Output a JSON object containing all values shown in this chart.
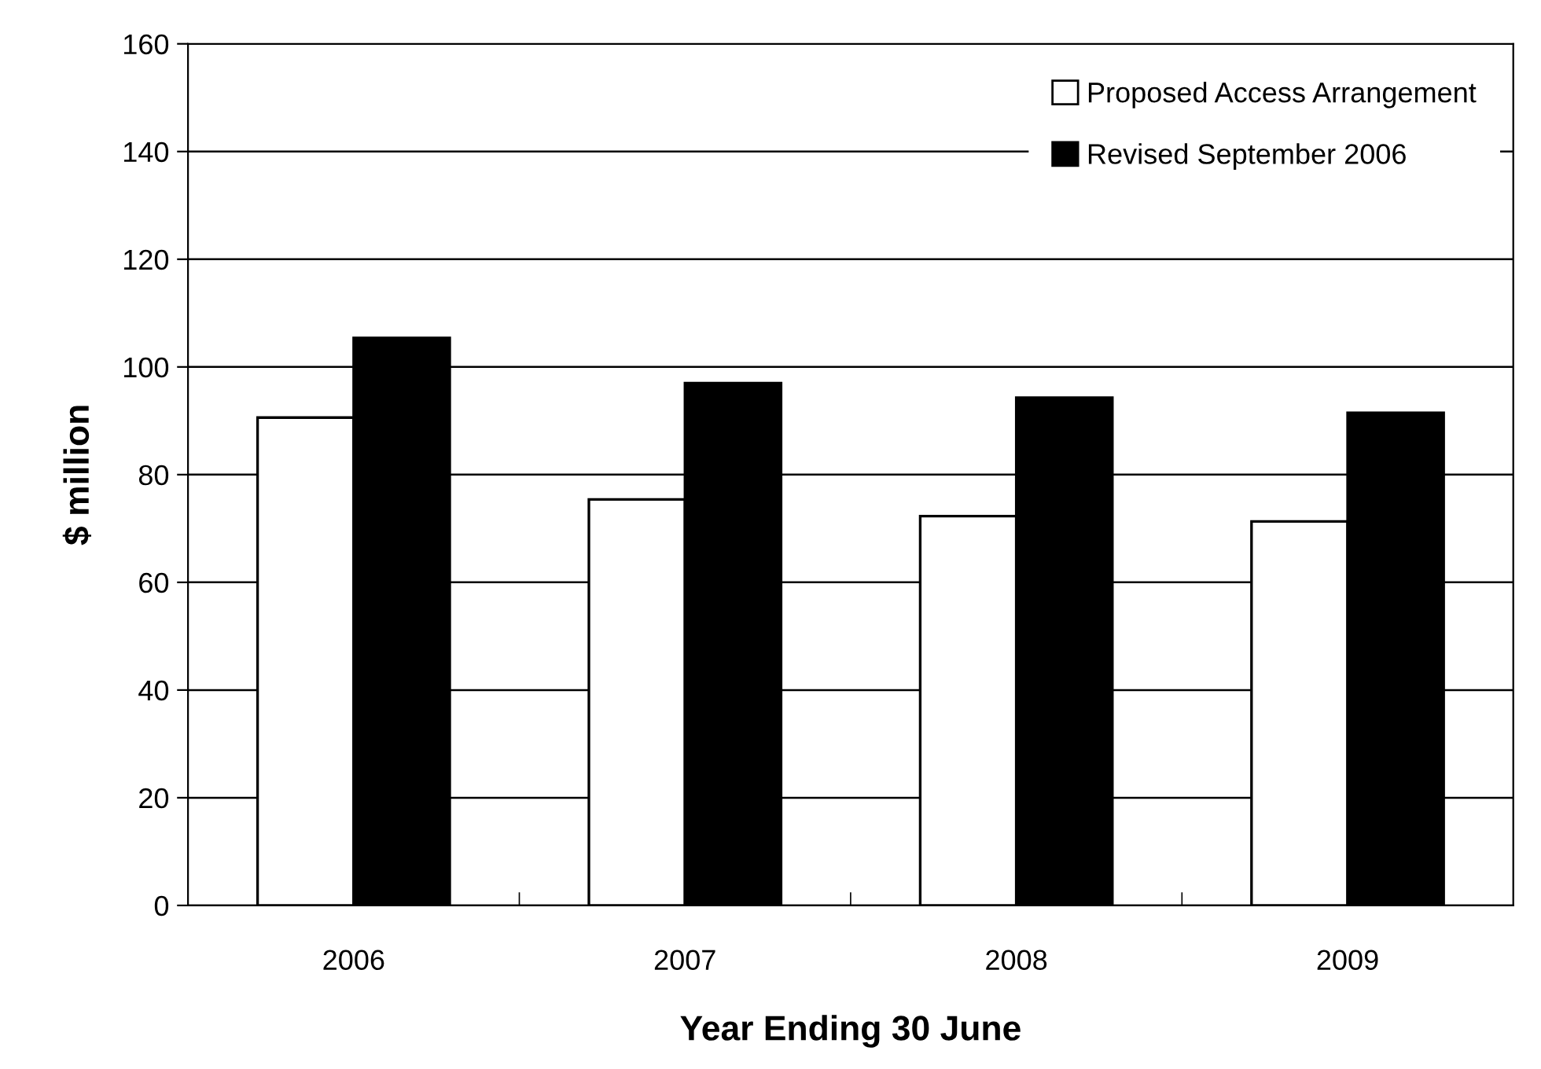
{
  "chart_data": {
    "type": "bar",
    "xlabel": "Year Ending 30 June",
    "ylabel": "$ million",
    "categories": [
      "2006",
      "2007",
      "2008",
      "2009"
    ],
    "series": [
      {
        "name": "Proposed Access Arrangement",
        "color": "#ffffff",
        "values": [
          90.6,
          75.4,
          72.3,
          71.3
        ]
      },
      {
        "name": "Revised September 2006",
        "color": "#000000",
        "values": [
          105.4,
          97.0,
          94.3,
          91.5
        ]
      }
    ],
    "ylim": [
      0,
      160
    ],
    "yticks": [
      0,
      20,
      40,
      60,
      80,
      100,
      120,
      140,
      160
    ],
    "grid": "y",
    "legend": "top right"
  }
}
